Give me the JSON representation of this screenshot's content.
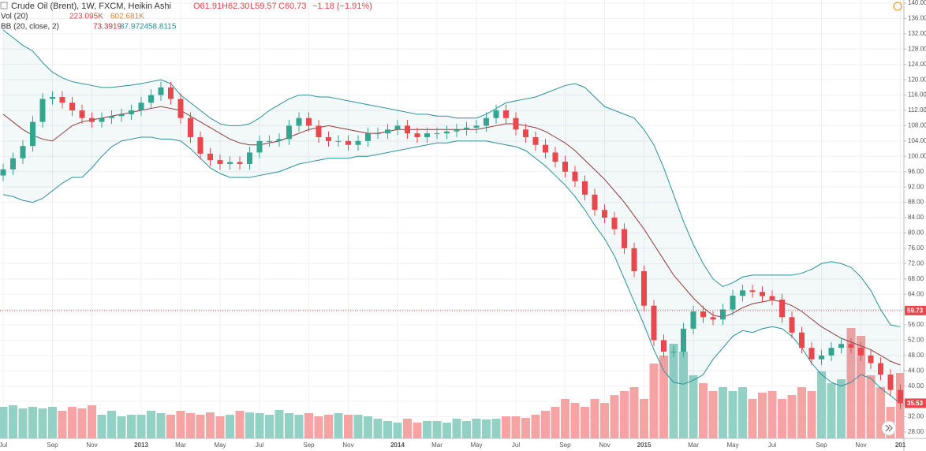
{
  "chart_data": {
    "type": "candlestick",
    "title": "Crude Oil (Brent), 1W, FXCM, Heikin Ashi",
    "legend_ohlc": [
      "O61.91",
      "H62.30",
      "L59.57",
      "C60.73",
      "−1.18 (−1.91%)"
    ],
    "indicators": [
      {
        "name": "Vol (20)",
        "readouts": [
          "223.095K",
          "602.681K"
        ]
      },
      {
        "name": "BB (20, close, 2)",
        "readouts": [
          73.3919,
          87.9724,
          58.8115
        ]
      }
    ],
    "categories": [
      "Jul",
      null,
      null,
      null,
      null,
      "Sep",
      null,
      null,
      null,
      "Nov",
      null,
      null,
      null,
      null,
      "2013",
      null,
      null,
      null,
      "Mar",
      null,
      null,
      null,
      "May",
      null,
      null,
      null,
      "Jul",
      null,
      null,
      null,
      null,
      "Sep",
      null,
      null,
      null,
      "Nov",
      null,
      null,
      null,
      null,
      "2014",
      null,
      null,
      null,
      "Mar",
      null,
      null,
      null,
      "May",
      null,
      null,
      null,
      "Jul",
      null,
      null,
      null,
      null,
      "Sep",
      null,
      null,
      null,
      "Nov",
      null,
      null,
      null,
      "2015",
      null,
      null,
      null,
      null,
      "Mar",
      null,
      null,
      null,
      "May",
      null,
      null,
      null,
      "Jul",
      null,
      null,
      null,
      null,
      "Sep",
      null,
      null,
      null,
      "Nov",
      null,
      null,
      null,
      "201"
    ],
    "open": [
      95,
      96.6,
      99.5,
      102.7,
      109,
      115,
      115.5,
      114,
      112,
      110,
      109,
      110,
      110.5,
      111,
      112,
      114,
      116,
      118,
      115,
      110,
      105,
      100.7,
      99,
      98,
      98.5,
      98,
      101,
      104,
      104,
      104.5,
      108,
      110,
      108,
      105,
      104,
      104,
      103,
      104,
      106,
      106,
      107,
      108,
      106,
      105,
      106,
      106,
      106.5,
      107,
      107.5,
      108,
      110,
      112,
      110,
      107,
      105,
      103,
      101,
      98.6,
      96,
      93.5,
      90,
      86,
      84,
      81,
      76,
      70,
      61,
      52,
      49,
      49,
      55,
      59.5,
      58,
      57.4,
      60,
      63.6,
      65,
      64.6,
      63.5,
      62.6,
      58,
      54,
      50,
      47,
      48,
      50,
      51,
      50,
      48,
      46,
      43,
      39
    ],
    "high": [
      98.1,
      101,
      104.2,
      110.5,
      116.5,
      117,
      117,
      115.5,
      113.5,
      111.5,
      111.5,
      112,
      112.5,
      113.5,
      115.5,
      117.5,
      119.5,
      119.5,
      116.5,
      111.5,
      106.5,
      102.2,
      100.5,
      100,
      100,
      102.5,
      105.5,
      105.5,
      106,
      109.5,
      111.5,
      111.5,
      109.5,
      106.5,
      105.5,
      105.5,
      105.5,
      107.5,
      107.5,
      108.5,
      109.5,
      109.5,
      107.5,
      107.5,
      107.5,
      108,
      108.5,
      109,
      109.5,
      111.5,
      113.5,
      113.5,
      111.5,
      108.5,
      106.5,
      104.5,
      102.5,
      100.1,
      97.5,
      95,
      91.5,
      87.5,
      85.5,
      82.5,
      77.5,
      71.5,
      62.5,
      53.5,
      50.5,
      56.5,
      61,
      61,
      59.5,
      61.5,
      65.1,
      66.5,
      66.5,
      66.1,
      65,
      64.1,
      59.5,
      55.5,
      51.5,
      49.5,
      51.5,
      52.5,
      52.5,
      51.5,
      49.5,
      47.5,
      44.5,
      40.5
    ],
    "low": [
      93.5,
      95.1,
      98,
      101.2,
      107.5,
      113.5,
      112.5,
      110.5,
      108.5,
      107.5,
      107.5,
      108.5,
      109,
      109.5,
      110.5,
      112.5,
      114.5,
      113.5,
      108.5,
      103.5,
      99.2,
      97.5,
      96.5,
      96.5,
      96.5,
      96.5,
      99.5,
      102.5,
      102.5,
      103,
      106.5,
      106.5,
      103.5,
      102.5,
      102.5,
      101.5,
      101.5,
      102.5,
      104.5,
      104.5,
      105.5,
      104.5,
      103.5,
      103.5,
      104.5,
      104.5,
      105,
      105.5,
      106,
      106.5,
      108.5,
      108.5,
      105.5,
      103.5,
      101.5,
      99.5,
      97.1,
      94.5,
      92,
      88.5,
      84.5,
      82.5,
      79.5,
      74.5,
      68.5,
      59.5,
      50.5,
      47.5,
      47.5,
      47.5,
      53.5,
      56.5,
      55.9,
      55.9,
      58.5,
      62.1,
      63.1,
      62,
      61.1,
      56.5,
      52.5,
      48.5,
      45.5,
      45.5,
      46.5,
      48.5,
      48.5,
      46.5,
      44.5,
      41.5,
      37.5,
      34
    ],
    "close": [
      96.6,
      99.5,
      102.7,
      109,
      115,
      115.5,
      114,
      112,
      110,
      109,
      110,
      110.5,
      111,
      112,
      114,
      116,
      118,
      115,
      110,
      105,
      100.7,
      99,
      98,
      98.5,
      98,
      101,
      104,
      104,
      104.5,
      108,
      110,
      108,
      105,
      104,
      104,
      103,
      104,
      106,
      106,
      107,
      108,
      106,
      105,
      106,
      106,
      106.5,
      107,
      107.5,
      108,
      110,
      112,
      110,
      107,
      105,
      103,
      101,
      98.6,
      96,
      93.5,
      90,
      86,
      84,
      81,
      76,
      70,
      61,
      52,
      49,
      49,
      55,
      59.5,
      58,
      57.4,
      60,
      63.6,
      65,
      64.6,
      63.5,
      62.6,
      58,
      54,
      50,
      47,
      48,
      50,
      51,
      50,
      48,
      46,
      43,
      39,
      35.53
    ],
    "volume": [
      108,
      113.4,
      102.6,
      108,
      102.6,
      108,
      94.5,
      108,
      102.6,
      113.4,
      81,
      94.5,
      75.6,
      81,
      81,
      94.5,
      86.4,
      81,
      94.5,
      86.4,
      81,
      89.1,
      75.6,
      81,
      94.5,
      89.1,
      86.4,
      81,
      97.2,
      86.4,
      81,
      86.4,
      75.6,
      81,
      86.4,
      81,
      81,
      75.6,
      67.5,
      59.4,
      54,
      67.5,
      54,
      59.4,
      59.4,
      54,
      67.5,
      59.4,
      67.5,
      64.8,
      67.5,
      75.6,
      75.6,
      70.2,
      81,
      94.5,
      108,
      135,
      121.5,
      108,
      135,
      121.5,
      148.5,
      162,
      175.5,
      135,
      256.5,
      283.5,
      324,
      297,
      216,
      189,
      162,
      175.5,
      162,
      175.5,
      135,
      156.6,
      162,
      135,
      148.5,
      175.5,
      162,
      229.5,
      189,
      202.5,
      378,
      351,
      216,
      175.5,
      108,
      224.1
    ],
    "bollinger": {
      "upper": [
        133,
        131,
        129,
        127.5,
        124.5,
        122,
        120.5,
        119.5,
        119,
        118.5,
        118,
        118,
        118.3,
        118.6,
        119,
        119.5,
        120,
        119,
        116,
        114,
        112,
        110,
        108.5,
        108,
        108,
        108.5,
        110,
        112,
        113.5,
        115,
        116,
        116,
        115.5,
        115.5,
        115,
        114.5,
        114,
        113.5,
        113,
        112.5,
        112,
        111.5,
        111,
        111,
        110.5,
        110.5,
        110,
        110,
        110,
        111,
        112.5,
        114,
        114.5,
        115,
        115.5,
        116.5,
        117.5,
        118.5,
        119,
        118,
        115.5,
        113,
        112,
        111,
        110,
        107,
        103,
        97,
        90,
        83,
        77,
        72,
        68,
        66,
        67,
        68.5,
        69,
        69,
        69,
        69,
        69,
        69.5,
        70.5,
        72,
        72.5,
        72,
        71,
        68.5,
        65,
        60,
        56,
        55.5
      ],
      "basis": [
        111,
        109,
        107,
        105.5,
        104.5,
        104,
        106,
        108,
        109,
        109.5,
        110,
        110.5,
        111,
        111.5,
        112,
        112.5,
        113,
        112.5,
        112,
        110.5,
        109,
        107.5,
        106,
        104.5,
        103.5,
        103,
        103,
        103.5,
        104,
        105,
        106,
        107,
        107.5,
        108,
        107.5,
        107,
        106.5,
        106,
        106,
        106.5,
        107,
        107,
        107,
        107,
        107,
        107,
        107,
        107,
        107,
        107.5,
        108,
        108.5,
        108.5,
        108,
        107.5,
        106.5,
        105,
        103.5,
        101.5,
        99,
        96.5,
        94,
        91,
        88,
        84.5,
        81,
        77,
        73,
        69,
        66,
        63,
        60.5,
        58.5,
        58,
        59,
        60.5,
        61.5,
        62,
        62.5,
        62,
        61,
        59.5,
        57.5,
        55.5,
        54,
        52.5,
        51.5,
        50.5,
        49.5,
        48,
        46.5,
        45.5
      ],
      "lower": [
        90,
        89.5,
        88.5,
        88,
        89,
        91,
        93,
        94.5,
        94.5,
        97,
        100,
        102.5,
        104,
        104.5,
        105,
        105,
        104.5,
        104.5,
        104,
        102,
        99.5,
        97,
        95.5,
        94.5,
        94.5,
        94.5,
        95,
        95.5,
        96,
        97,
        98,
        98.5,
        99,
        99.5,
        99.5,
        99.5,
        100,
        100,
        100.5,
        101,
        101.5,
        102,
        102.5,
        103,
        103.5,
        103.5,
        104,
        104,
        104,
        104,
        103.5,
        103,
        102.5,
        101.5,
        99.5,
        97.5,
        95,
        92.5,
        89.5,
        86,
        82,
        78.5,
        74,
        68,
        62,
        56,
        49.5,
        44,
        41,
        40.5,
        41.5,
        43,
        47,
        50,
        53,
        54.5,
        54,
        55,
        55.5,
        55,
        53,
        50,
        46,
        43,
        41,
        40,
        41,
        43,
        42,
        39.5,
        37.5,
        35.5
      ]
    },
    "price_line": 59.73,
    "last_price": 35.53,
    "ylim": [
      28,
      140
    ],
    "yticks": [
      {
        "value": 28,
        "label": "28.00"
      },
      {
        "value": 32,
        "label": "32.00"
      },
      {
        "value": 36,
        "label": "36.00"
      },
      {
        "value": 40,
        "label": "40.00"
      },
      {
        "value": 44,
        "label": "44.00"
      },
      {
        "value": 48,
        "label": "48.00"
      },
      {
        "value": 52,
        "label": "52.00"
      },
      {
        "value": 56,
        "label": "56.00"
      },
      {
        "value": 60,
        "label": "60.00"
      },
      {
        "value": 64,
        "label": "64.00"
      },
      {
        "value": 68,
        "label": "68.00"
      },
      {
        "value": 72,
        "label": "72.00"
      },
      {
        "value": 76,
        "label": "76.00"
      },
      {
        "value": 80,
        "label": "80.00"
      },
      {
        "value": 84,
        "label": "84.00"
      },
      {
        "value": 88,
        "label": "88.00"
      },
      {
        "value": 92,
        "label": "92.00"
      },
      {
        "value": 96,
        "label": "96.00"
      },
      {
        "value": 100,
        "label": "100.00"
      },
      {
        "value": 104,
        "label": "104.00"
      },
      {
        "value": 108,
        "label": "108.00"
      },
      {
        "value": 112,
        "label": "112.00"
      },
      {
        "value": 116,
        "label": "116.00"
      },
      {
        "value": 120,
        "label": "120.00"
      },
      {
        "value": 124,
        "label": "124.00"
      },
      {
        "value": 128,
        "label": "128.00"
      },
      {
        "value": 132,
        "label": "132.00"
      },
      {
        "value": 136,
        "label": "136.00"
      },
      {
        "value": 140,
        "label": "140.00"
      }
    ],
    "grid": true,
    "up_color": "#34a58f",
    "down_color": "#e8474d",
    "volume_up_color": "#93d1c5",
    "volume_down_color": "#f5a3a3",
    "band_color": "#2b8f95",
    "basis_color": "#8e3b3b"
  }
}
